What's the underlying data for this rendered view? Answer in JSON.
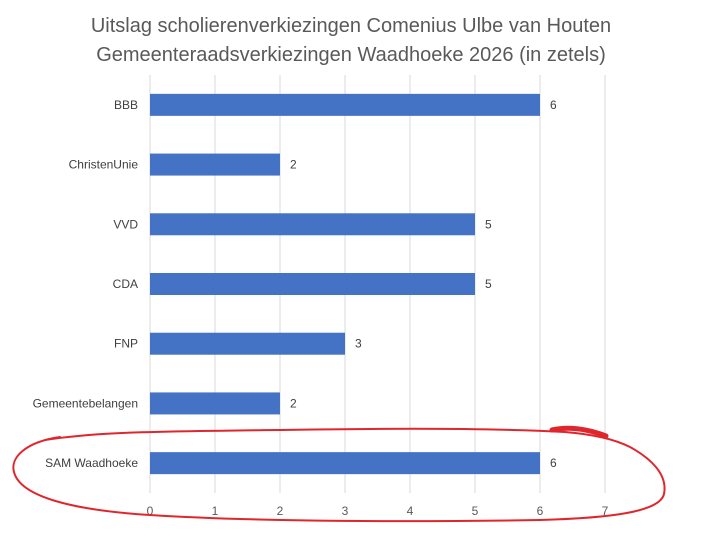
{
  "chart_data": {
    "type": "bar",
    "orientation": "horizontal",
    "title": "Uitslag scholierenverkiezingen Comenius Ulbe van Houten",
    "subtitle": "Gemeenteraadsverkiezingen Waadhoeke 2026 (in zetels)",
    "categories": [
      "BBB",
      "ChristenUnie",
      "VVD",
      "CDA",
      "FNP",
      "Gemeentebelangen",
      "SAM Waadhoeke"
    ],
    "values": [
      6,
      2,
      5,
      5,
      3,
      2,
      6
    ],
    "xlim": [
      0,
      7
    ],
    "xticks": [
      "0",
      "1",
      "2",
      "3",
      "4",
      "5",
      "6",
      "7"
    ],
    "grid": "vertical",
    "data_labels": true,
    "legend": "none",
    "bar_color": "#4472c4",
    "annotation": {
      "type": "hand-drawn ellipse",
      "color": "#e0262d",
      "highlights": "SAM Waadhoeke"
    }
  }
}
